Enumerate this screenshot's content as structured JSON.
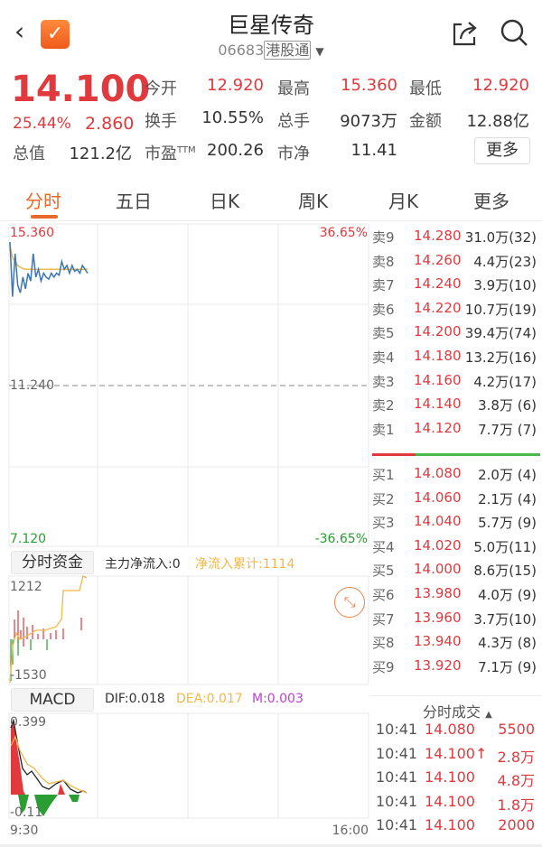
{
  "header": {
    "title": "巨星传奇",
    "code": "06683",
    "tag": "港股通"
  },
  "quote": {
    "price": "14.100",
    "change_pct": "25.44%",
    "change": "2.860",
    "fields": [
      {
        "label": "今开",
        "value": "12.920",
        "color": "red"
      },
      {
        "label": "最高",
        "value": "15.360",
        "color": "red"
      },
      {
        "label": "最低",
        "value": "12.920",
        "color": "red"
      },
      {
        "label": "换手",
        "value": "10.55%",
        "color": "dark"
      },
      {
        "label": "总手",
        "value": "9073万",
        "color": "dark"
      },
      {
        "label": "金额",
        "value": "12.88亿",
        "color": "dark"
      },
      {
        "label": "总值",
        "value": "121.2亿",
        "color": "dark"
      },
      {
        "label": "市盈",
        "sup": "TTM",
        "value": "200.26",
        "color": "dark"
      },
      {
        "label": "市净",
        "value": "11.41",
        "color": "dark"
      }
    ],
    "more": "更多"
  },
  "tabs": [
    {
      "label": "分时",
      "active": true
    },
    {
      "label": "五日"
    },
    {
      "label": "日K"
    },
    {
      "label": "周K"
    },
    {
      "label": "月K"
    },
    {
      "label": "更多"
    }
  ],
  "price_chart": {
    "high": "15.360",
    "mid": "11.240",
    "low": "7.120",
    "up_pct": "36.65%",
    "down_pct": "-36.65%",
    "price": [
      14.9,
      13.5,
      14.6,
      13.8,
      13.6,
      14.0,
      13.7,
      14.1,
      13.9,
      14.6,
      14.0,
      14.2,
      13.9,
      14.1,
      14.0,
      13.95,
      14.1,
      14.0,
      14.1,
      14.05,
      14.4,
      14.2,
      14.3,
      14.1,
      14.3,
      14.15,
      14.2,
      14.1,
      14.3,
      14.2,
      14.1
    ],
    "avg": [
      14.8,
      14.5,
      14.4,
      14.3,
      14.25,
      14.22,
      14.2,
      14.2,
      14.2,
      14.2,
      14.2,
      14.2,
      14.2,
      14.2,
      14.2,
      14.2,
      14.2,
      14.2,
      14.2,
      14.2,
      14.2,
      14.2,
      14.2,
      14.2,
      14.2,
      14.2,
      14.2,
      14.2,
      14.2,
      14.2,
      14.2
    ],
    "colors": {
      "price": "#3b76b8",
      "avg": "#f0b84a"
    }
  },
  "funds": {
    "button": "分时资金",
    "main_flow": "主力净流入:0",
    "cum_flow": "净流入累计:1114",
    "max": "1212",
    "min": "-1530"
  },
  "macd": {
    "button": "MACD",
    "dif": "DIF:0.018",
    "dea": "DEA:0.017",
    "m": "M:0.003",
    "max": "0.399",
    "min": "-0.11"
  },
  "time_axis": {
    "start": "9:30",
    "end": "16:00"
  },
  "orderbook": {
    "asks": [
      {
        "k": "卖9",
        "p": "14.280",
        "v": "31.0万(32)"
      },
      {
        "k": "卖8",
        "p": "14.260",
        "v": "4.4万(23)"
      },
      {
        "k": "卖7",
        "p": "14.240",
        "v": "3.9万(10)"
      },
      {
        "k": "卖6",
        "p": "14.220",
        "v": "10.7万(19)"
      },
      {
        "k": "卖5",
        "p": "14.200",
        "v": "39.4万(74)"
      },
      {
        "k": "卖4",
        "p": "14.180",
        "v": "13.2万(16)"
      },
      {
        "k": "卖3",
        "p": "14.160",
        "v": "4.2万(17)"
      },
      {
        "k": "卖2",
        "p": "14.140",
        "v": "3.8万 (6)"
      },
      {
        "k": "卖1",
        "p": "14.120",
        "v": "7.7万 (7)"
      }
    ],
    "bids": [
      {
        "k": "买1",
        "p": "14.080",
        "v": "2.0万 (4)"
      },
      {
        "k": "买2",
        "p": "14.060",
        "v": "2.1万 (4)"
      },
      {
        "k": "买3",
        "p": "14.040",
        "v": "5.7万 (9)"
      },
      {
        "k": "买4",
        "p": "14.020",
        "v": "5.0万(11)"
      },
      {
        "k": "买5",
        "p": "14.000",
        "v": "8.6万(15)"
      },
      {
        "k": "买6",
        "p": "13.980",
        "v": "4.0万 (9)"
      },
      {
        "k": "买7",
        "p": "13.960",
        "v": "3.7万(10)"
      },
      {
        "k": "买8",
        "p": "13.940",
        "v": "4.3万 (8)"
      },
      {
        "k": "买9",
        "p": "13.920",
        "v": "7.1万 (9)"
      }
    ],
    "buy_ratio": 0.26
  },
  "ticks": {
    "title": "分时成交",
    "rows": [
      {
        "t": "10:41",
        "p": "14.080",
        "v": "5500"
      },
      {
        "t": "10:41",
        "p": "14.100↑",
        "v": "2.8万"
      },
      {
        "t": "10:41",
        "p": "14.100",
        "v": "4.8万"
      },
      {
        "t": "10:41",
        "p": "14.100",
        "v": "1.8万"
      },
      {
        "t": "10:41",
        "p": "14.100",
        "v": "2000"
      }
    ]
  }
}
